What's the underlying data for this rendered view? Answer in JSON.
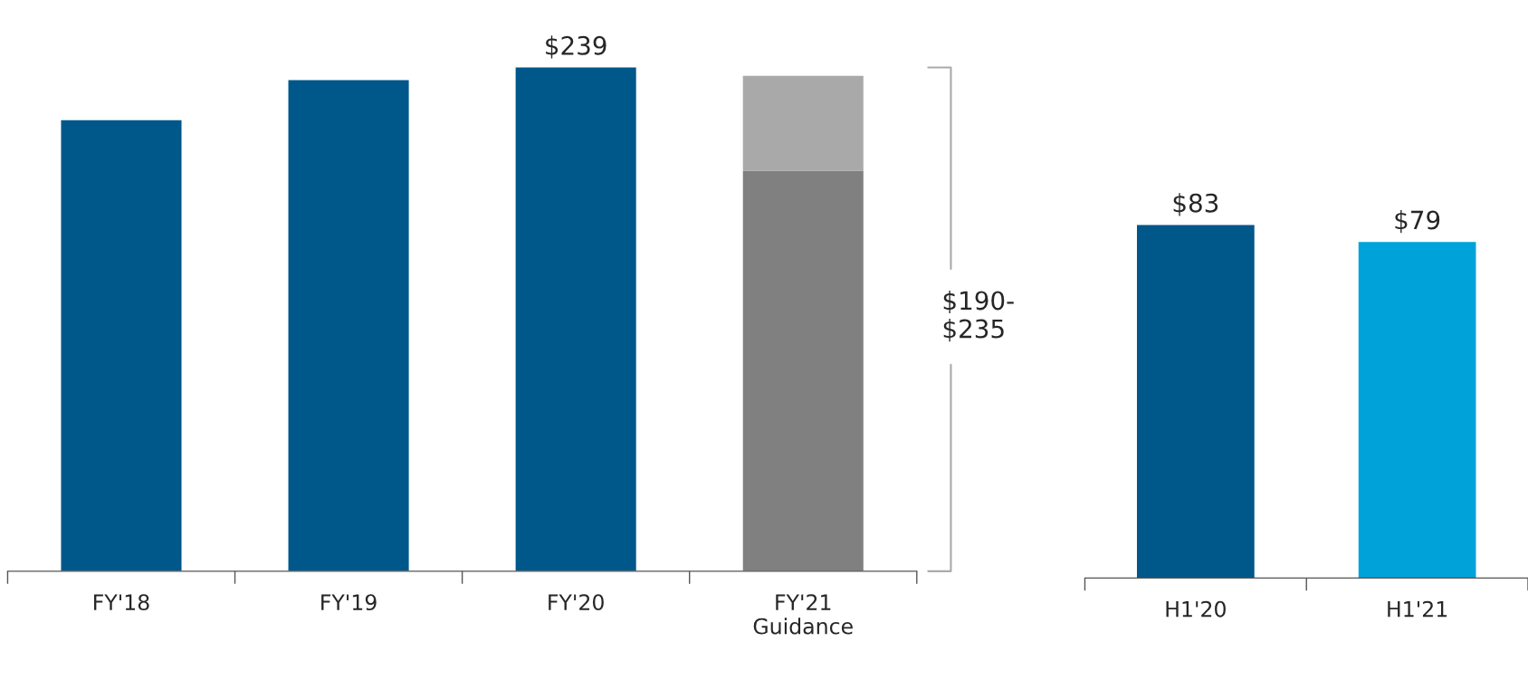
{
  "chart_data": [
    {
      "type": "bar",
      "stacked": true,
      "categories": [
        "FY'18",
        "FY'19",
        "FY'20",
        "FY'21\nGuidance"
      ],
      "series": [
        {
          "colors": [
            "#00578a",
            "#00578a",
            "#00578a",
            "#808080"
          ],
          "values": [
            214,
            233,
            239,
            190
          ],
          "value_labels": [
            null,
            null,
            "$239",
            null
          ]
        },
        {
          "color": "#a9a9a9",
          "values": [
            null,
            null,
            null,
            45
          ]
        }
      ],
      "annotations": [
        "$190-\n$235"
      ],
      "grid": false,
      "legend": false
    },
    {
      "type": "bar",
      "categories": [
        "H1'20",
        "H1'21"
      ],
      "colors": [
        "#00578a",
        "#00a3d9"
      ],
      "values": [
        83,
        79
      ],
      "value_labels": [
        "$83",
        "$79"
      ],
      "grid": false,
      "legend": false
    }
  ]
}
